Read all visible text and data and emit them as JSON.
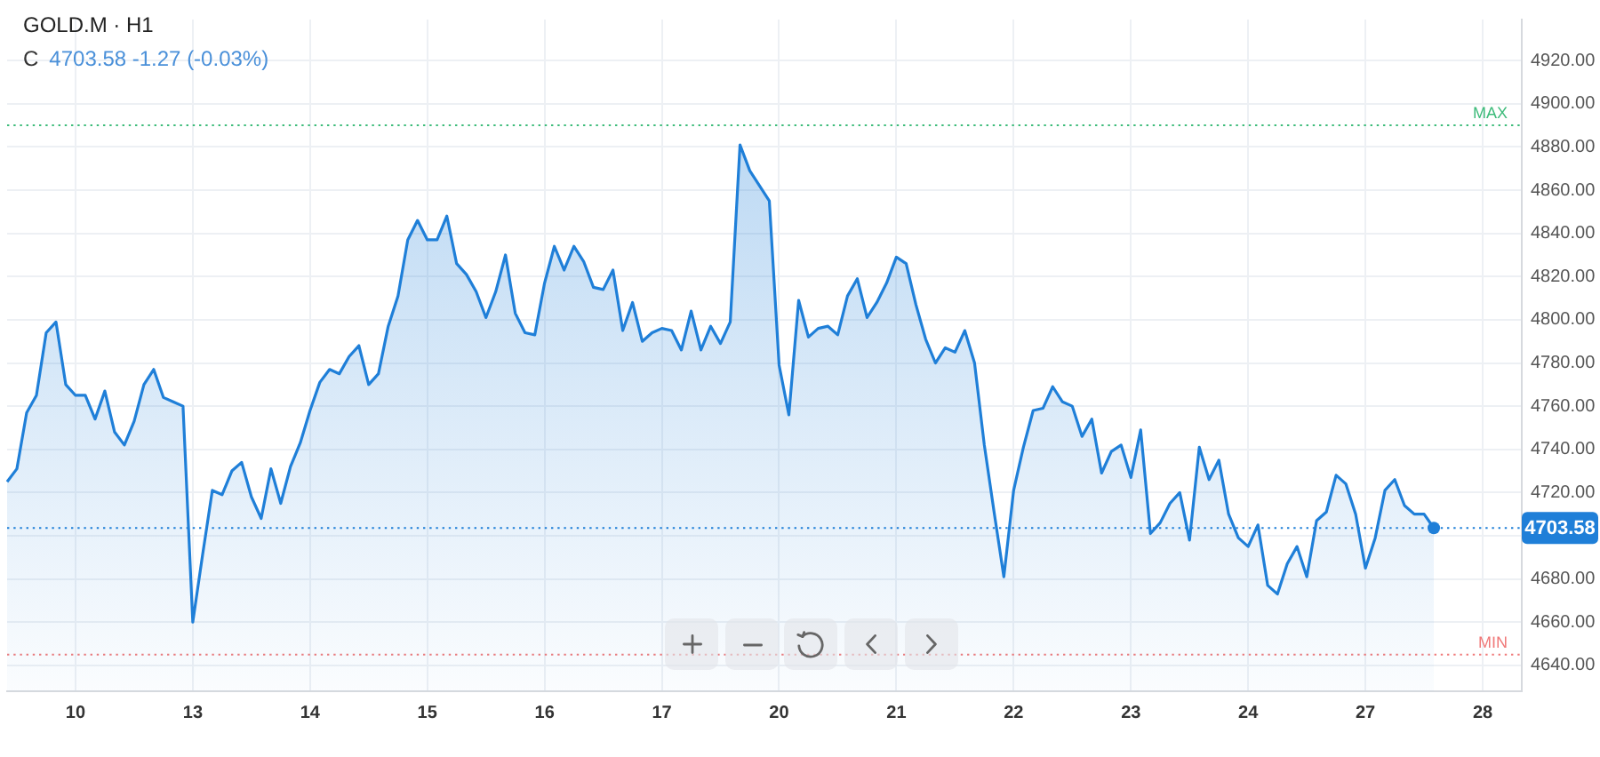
{
  "chart_data": {
    "type": "area",
    "title": "GOLD.M · H1",
    "subtitle": "C 4703.58 -1.27 (-0.03%)",
    "categories": [
      null,
      null,
      null,
      null,
      null,
      null,
      null,
      "10",
      null,
      null,
      null,
      null,
      null,
      null,
      null,
      null,
      null,
      null,
      null,
      "13",
      null,
      null,
      null,
      null,
      null,
      null,
      null,
      null,
      null,
      null,
      null,
      "14",
      null,
      null,
      null,
      null,
      null,
      null,
      null,
      null,
      null,
      null,
      null,
      "15",
      null,
      null,
      null,
      null,
      null,
      null,
      null,
      null,
      null,
      null,
      null,
      "16",
      null,
      null,
      null,
      null,
      null,
      null,
      null,
      null,
      null,
      null,
      null,
      "17",
      null,
      null,
      null,
      null,
      null,
      null,
      null,
      null,
      null,
      null,
      null,
      "20",
      null,
      null,
      null,
      null,
      null,
      null,
      null,
      null,
      null,
      null,
      null,
      "21",
      null,
      null,
      null,
      null,
      null,
      null,
      null,
      null,
      null,
      null,
      null,
      "22",
      null,
      null,
      null,
      null,
      null,
      null,
      null,
      null,
      null,
      null,
      null,
      "23",
      null,
      null,
      null,
      null,
      null,
      null,
      null,
      null,
      null,
      null,
      null,
      "24",
      null,
      null,
      null,
      null,
      null,
      null,
      null,
      null,
      null,
      null,
      null,
      "27",
      null,
      null,
      null,
      null,
      null,
      null,
      null,
      null,
      null,
      null,
      null,
      "28",
      null,
      null,
      null,
      null
    ],
    "series": [
      {
        "color": "#1f7fd8",
        "values": [
          4725,
          4731,
          4757,
          4765,
          4794,
          4799,
          4770,
          4765,
          4765,
          4754,
          4767,
          4748,
          4742,
          4753,
          4770,
          4777,
          4764,
          4762,
          4760,
          4660,
          4691,
          4721,
          4719,
          4730,
          4734,
          4718,
          4708,
          4731,
          4715,
          4732,
          4743,
          4758,
          4771,
          4777,
          4775,
          4783,
          4788,
          4770,
          4775,
          4797,
          4811,
          4837,
          4846,
          4837,
          4837,
          4848,
          4826,
          4821,
          4813,
          4801,
          4813,
          4830,
          4803,
          4794,
          4793,
          4817,
          4834,
          4823,
          4834,
          4827,
          4815,
          4814,
          4823,
          4795,
          4808,
          4790,
          4794,
          4796,
          4795,
          4786,
          4804,
          4786,
          4797,
          4789,
          4799,
          4881,
          4869,
          4862,
          4855,
          4779,
          4756,
          4809,
          4792,
          4796,
          4797,
          4793,
          4811,
          4819,
          4801,
          4808,
          4817,
          4829,
          4826,
          4807,
          4791,
          4780,
          4787,
          4785,
          4795,
          4780,
          4742,
          4711,
          4681,
          4721,
          4741,
          4758,
          4759,
          4769,
          4762,
          4760,
          4746,
          4754,
          4729,
          4739,
          4742,
          4727,
          4749,
          4701,
          4706,
          4715,
          4720,
          4698,
          4741,
          4726,
          4735,
          4710,
          4699,
          4695,
          4705,
          4677,
          4673,
          4687,
          4695,
          4681,
          4707,
          4711,
          4728,
          4724,
          4710,
          4685,
          4699,
          4721,
          4726,
          4714,
          4710,
          4710,
          4703.58,
          null,
          null,
          null,
          null,
          null,
          null,
          null,
          null,
          null
        ]
      },
      {
        "type": "scatter",
        "color": "#1f7fd8",
        "values": [
          null,
          null,
          null,
          null,
          null,
          null,
          null,
          null,
          null,
          null,
          null,
          null,
          null,
          null,
          null,
          null,
          null,
          null,
          null,
          null,
          null,
          null,
          null,
          null,
          null,
          null,
          null,
          null,
          null,
          null,
          null,
          null,
          null,
          null,
          null,
          null,
          null,
          null,
          null,
          null,
          null,
          null,
          null,
          null,
          null,
          null,
          null,
          null,
          null,
          null,
          null,
          null,
          null,
          null,
          null,
          null,
          null,
          null,
          null,
          null,
          null,
          null,
          null,
          null,
          null,
          null,
          null,
          null,
          null,
          null,
          null,
          null,
          null,
          null,
          null,
          null,
          null,
          null,
          null,
          null,
          null,
          null,
          null,
          null,
          null,
          null,
          null,
          null,
          null,
          null,
          null,
          null,
          null,
          null,
          null,
          null,
          null,
          null,
          null,
          null,
          null,
          null,
          null,
          null,
          null,
          null,
          null,
          null,
          null,
          null,
          null,
          null,
          null,
          null,
          null,
          null,
          null,
          null,
          null,
          null,
          null,
          null,
          null,
          null,
          null,
          null,
          null,
          null,
          null,
          null,
          null,
          null,
          null,
          null,
          null,
          null,
          null,
          null,
          null,
          null,
          null,
          null,
          null,
          null,
          null,
          null,
          4703.58,
          null,
          null,
          null,
          null,
          null,
          null,
          null,
          null,
          null
        ]
      }
    ],
    "ylim": [
      4628,
      4939
    ],
    "yticks": [
      {
        "value": 4640,
        "label": "4640.00"
      },
      {
        "value": 4660,
        "label": "4660.00"
      },
      {
        "value": 4680,
        "label": "4680.00"
      },
      {
        "value": 4700,
        "label": null
      },
      {
        "value": 4720,
        "label": "4720.00"
      },
      {
        "value": 4740,
        "label": "4740.00"
      },
      {
        "value": 4760,
        "label": "4760.00"
      },
      {
        "value": 4780,
        "label": "4780.00"
      },
      {
        "value": 4800,
        "label": "4800.00"
      },
      {
        "value": 4820,
        "label": "4820.00"
      },
      {
        "value": 4840,
        "label": "4840.00"
      },
      {
        "value": 4860,
        "label": "4860.00"
      },
      {
        "value": 4880,
        "label": "4880.00"
      },
      {
        "value": 4900,
        "label": "4900.00"
      },
      {
        "value": 4920,
        "label": "4920.00"
      }
    ],
    "grid": true,
    "ref_lines": [
      {
        "axis": "y",
        "value": 4890,
        "label": "MAX",
        "color": "#3dbb7a",
        "line_style": "dotted"
      },
      {
        "axis": "y",
        "value": 4645,
        "label": "MIN",
        "color": "#f07a7a",
        "line_style": "dotted"
      },
      {
        "axis": "y",
        "value": 4703.58,
        "color": "#1f7fd8",
        "line_style": "dotted"
      }
    ],
    "annotations": [
      {
        "text": "4703.58",
        "y": 4703.58
      }
    ]
  }
}
